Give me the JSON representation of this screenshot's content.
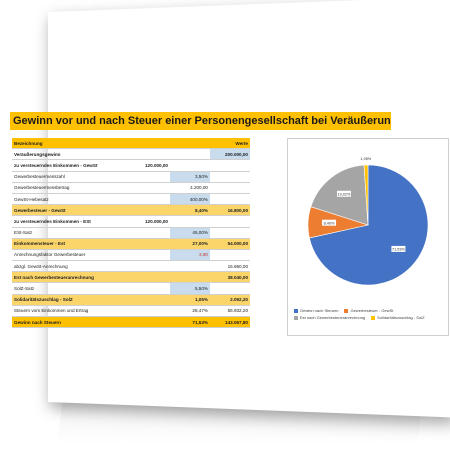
{
  "title": "Gewinn vor und nach Steuer einer Personengesellschaft bei Veräußerung",
  "table": {
    "header_label": "Bezeichnung",
    "header_werte": "Werte",
    "rows": [
      {
        "label": "Veräußerungsgewinn",
        "c1": "",
        "c2": "",
        "c3": "200.000,00",
        "style": "bold",
        "blue3": true
      },
      {
        "label": "zu versteuerndes Einkommen - GewSt",
        "c1": "120.000,00",
        "c2": "",
        "c3": "",
        "style": "bold"
      },
      {
        "label": "Gewerbesteuermesszahl",
        "c1": "",
        "c2": "3,50%",
        "c3": "",
        "blue2": true
      },
      {
        "label": "Gewerbesteuermessbetrag",
        "c1": "",
        "c2": "4.200,00",
        "c3": ""
      },
      {
        "label": "GewSt-Hebesatz",
        "c1": "",
        "c2": "400,00%",
        "c3": "",
        "blue2": true
      },
      {
        "label": "Gewerbesteuer - GewSt",
        "c1": "",
        "c2": "8,40%",
        "c3": "16.800,00",
        "style": "orange"
      },
      {
        "label": "zu versteuerndes Einkommen - ESt",
        "c1": "120.000,00",
        "c2": "",
        "c3": "",
        "style": "bold"
      },
      {
        "label": "ESt-Satz",
        "c1": "",
        "c2": "45,00%",
        "c3": "",
        "blue2": true
      },
      {
        "label": "Einkommensteuer - Est",
        "c1": "",
        "c2": "27,00%",
        "c3": "54.000,00",
        "style": "orange"
      },
      {
        "label": "Anrechnungsfaktor Gewerbesteuer",
        "c1": "",
        "c2": "3,80",
        "c3": "",
        "blue2": true,
        "red2": true
      },
      {
        "label": "abzgl. GewSt-Anrechnung",
        "c1": "",
        "c2": "",
        "c3": "15.960,00"
      },
      {
        "label": "Est nach Gewerbesteueranrechnung",
        "c1": "",
        "c2": "",
        "c3": "38.040,00",
        "style": "orange"
      },
      {
        "label": "SolZ-Satz",
        "c1": "",
        "c2": "5,50%",
        "c3": "",
        "blue2": true
      },
      {
        "label": "Solidaritätszuschlag - SolZ",
        "c1": "",
        "c2": "1,05%",
        "c3": "2.092,20",
        "style": "orange"
      },
      {
        "label": "Steuern vom Einkommen und Ertrag",
        "c1": "",
        "c2": "28,47%",
        "c3": "56.932,20"
      },
      {
        "label": "Gewinn nach Steuern",
        "c1": "",
        "c2": "71,53%",
        "c3": "143.067,80",
        "style": "hdr"
      }
    ]
  },
  "chart_data": {
    "type": "pie",
    "slices": [
      {
        "name": "Gewinn nach Steuern",
        "value": 71.53,
        "label": "71,53%",
        "color": "#4472c4"
      },
      {
        "name": "Gewerbesteuer - GewSt",
        "value": 8.4,
        "label": "8,40%",
        "color": "#ed7d31"
      },
      {
        "name": "Est nach Gewerbesteueranrechnung",
        "value": 19.02,
        "label": "19,02%",
        "color": "#a5a5a5"
      },
      {
        "name": "Solidaritätszuschlag - SolZ",
        "value": 1.05,
        "label": "1,05%",
        "color": "#ffc000"
      }
    ]
  }
}
